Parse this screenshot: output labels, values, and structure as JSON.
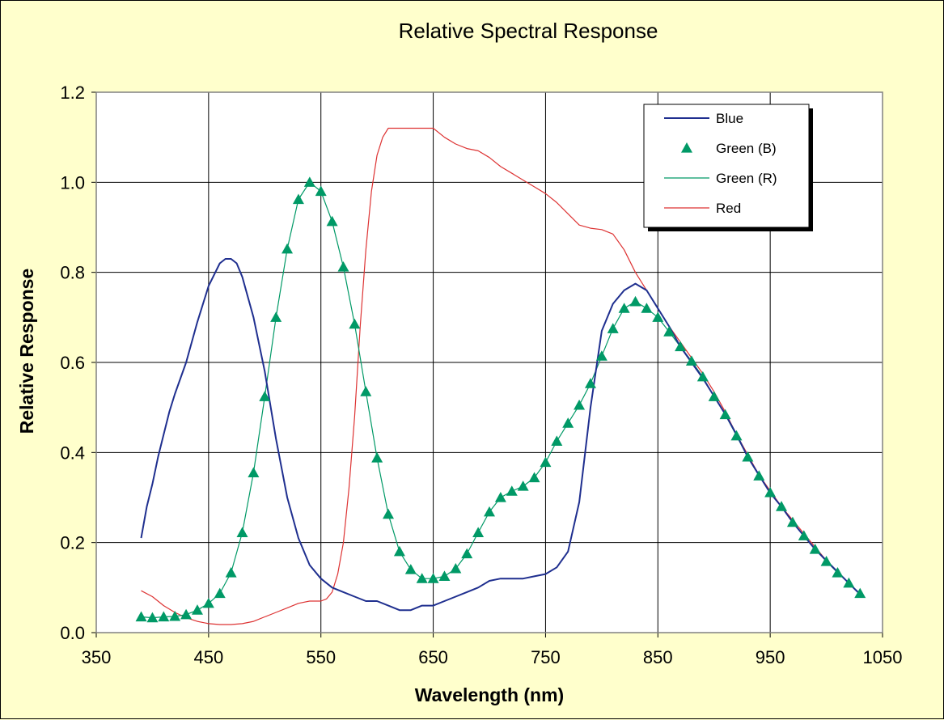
{
  "chart_data": {
    "type": "line",
    "title": "Relative Spectral Response",
    "xlabel": "Wavelength (nm)",
    "ylabel": "Relative Response",
    "xlim": [
      350,
      1050
    ],
    "ylim": [
      0.0,
      1.2
    ],
    "xticks": [
      "350",
      "450",
      "550",
      "650",
      "750",
      "850",
      "950",
      "1050"
    ],
    "yticks": [
      "0.0",
      "0.2",
      "0.4",
      "0.6",
      "0.8",
      "1.0",
      "1.2"
    ],
    "grid": true,
    "legend_position": "top-right",
    "plot_background": "#ffffff",
    "page_background": "#ffffcc",
    "series": [
      {
        "name": "Blue",
        "style": "line",
        "color": "#1f2f8f",
        "x": [
          390,
          395,
          400,
          405,
          410,
          415,
          420,
          430,
          440,
          450,
          460,
          465,
          470,
          475,
          480,
          490,
          500,
          510,
          520,
          530,
          540,
          550,
          560,
          570,
          580,
          590,
          600,
          610,
          620,
          630,
          640,
          650,
          660,
          670,
          680,
          690,
          700,
          710,
          720,
          730,
          740,
          750,
          760,
          770,
          780,
          790,
          800,
          810,
          820,
          830,
          840,
          850,
          860,
          870,
          880,
          890,
          900,
          910,
          920,
          930,
          940,
          950,
          960,
          970,
          980,
          990,
          1000,
          1010,
          1020,
          1030
        ],
        "y": [
          0.21,
          0.28,
          0.33,
          0.39,
          0.44,
          0.49,
          0.53,
          0.6,
          0.69,
          0.77,
          0.82,
          0.83,
          0.83,
          0.82,
          0.79,
          0.7,
          0.58,
          0.43,
          0.3,
          0.21,
          0.15,
          0.12,
          0.1,
          0.09,
          0.08,
          0.07,
          0.07,
          0.06,
          0.05,
          0.05,
          0.06,
          0.06,
          0.07,
          0.08,
          0.09,
          0.1,
          0.115,
          0.12,
          0.12,
          0.12,
          0.125,
          0.13,
          0.145,
          0.18,
          0.29,
          0.5,
          0.67,
          0.73,
          0.76,
          0.775,
          0.76,
          0.72,
          0.68,
          0.635,
          0.6,
          0.565,
          0.525,
          0.485,
          0.44,
          0.39,
          0.35,
          0.31,
          0.28,
          0.245,
          0.215,
          0.185,
          0.16,
          0.135,
          0.11,
          0.085
        ]
      },
      {
        "name": "Green (B)",
        "style": "markers",
        "marker": "triangle",
        "color": "#009966",
        "x": [
          390,
          400,
          410,
          420,
          430,
          440,
          450,
          460,
          470,
          480,
          490,
          500,
          510,
          520,
          530,
          540,
          550,
          560,
          570,
          580,
          590,
          600,
          610,
          620,
          630,
          640,
          650,
          660,
          670,
          680,
          690,
          700,
          710,
          720,
          730,
          740,
          750,
          760,
          770,
          780,
          790,
          800,
          810,
          820,
          830,
          840,
          850,
          860,
          870,
          880,
          890,
          900,
          910,
          920,
          930,
          940,
          950,
          960,
          970,
          980,
          990,
          1000,
          1010,
          1020,
          1030
        ],
        "y": [
          0.035,
          0.033,
          0.035,
          0.036,
          0.04,
          0.05,
          0.065,
          0.087,
          0.133,
          0.222,
          0.355,
          0.524,
          0.7,
          0.852,
          0.962,
          1.0,
          0.98,
          0.913,
          0.812,
          0.685,
          0.535,
          0.388,
          0.263,
          0.18,
          0.14,
          0.12,
          0.12,
          0.125,
          0.142,
          0.175,
          0.222,
          0.268,
          0.3,
          0.314,
          0.325,
          0.344,
          0.378,
          0.425,
          0.465,
          0.505,
          0.553,
          0.614,
          0.675,
          0.72,
          0.735,
          0.72,
          0.7,
          0.668,
          0.635,
          0.603,
          0.568,
          0.524,
          0.484,
          0.437,
          0.39,
          0.348,
          0.311,
          0.28,
          0.245,
          0.215,
          0.185,
          0.158,
          0.133,
          0.11,
          0.087
        ]
      },
      {
        "name": "Green (R)",
        "style": "line",
        "color": "#009966",
        "x": [
          390,
          400,
          410,
          420,
          430,
          440,
          450,
          460,
          470,
          480,
          490,
          500,
          510,
          520,
          530,
          540,
          550,
          560,
          570,
          580,
          590,
          600,
          610,
          620,
          630,
          640,
          650,
          660,
          670,
          680,
          690,
          700,
          710,
          720,
          730,
          740,
          750,
          760,
          770,
          780,
          790,
          800,
          810,
          820,
          830,
          840,
          850,
          860,
          870,
          880,
          890,
          900,
          910,
          920,
          930,
          940,
          950,
          960,
          970,
          980,
          990,
          1000,
          1010,
          1020,
          1030
        ],
        "y": [
          0.035,
          0.033,
          0.035,
          0.036,
          0.04,
          0.05,
          0.065,
          0.087,
          0.133,
          0.222,
          0.355,
          0.524,
          0.7,
          0.852,
          0.962,
          1.0,
          0.98,
          0.913,
          0.812,
          0.685,
          0.535,
          0.388,
          0.263,
          0.18,
          0.14,
          0.12,
          0.12,
          0.125,
          0.142,
          0.175,
          0.222,
          0.268,
          0.3,
          0.314,
          0.325,
          0.344,
          0.378,
          0.425,
          0.465,
          0.505,
          0.553,
          0.614,
          0.675,
          0.72,
          0.735,
          0.72,
          0.7,
          0.668,
          0.635,
          0.603,
          0.568,
          0.524,
          0.484,
          0.437,
          0.39,
          0.348,
          0.311,
          0.28,
          0.245,
          0.215,
          0.185,
          0.158,
          0.133,
          0.11,
          0.087
        ]
      },
      {
        "name": "Red",
        "style": "line",
        "color": "#dd3333",
        "x": [
          390,
          400,
          410,
          420,
          430,
          440,
          450,
          460,
          470,
          480,
          490,
          500,
          510,
          520,
          530,
          540,
          550,
          555,
          560,
          565,
          570,
          575,
          580,
          585,
          590,
          595,
          600,
          605,
          610,
          620,
          630,
          640,
          650,
          660,
          670,
          680,
          690,
          700,
          710,
          720,
          730,
          740,
          750,
          760,
          770,
          780,
          790,
          800,
          810,
          820,
          830,
          840,
          850,
          860,
          870,
          880,
          890,
          900,
          910,
          920,
          930,
          940,
          950,
          960,
          970,
          980,
          990,
          1000,
          1010,
          1020,
          1030
        ],
        "y": [
          0.093,
          0.08,
          0.06,
          0.045,
          0.033,
          0.025,
          0.02,
          0.018,
          0.018,
          0.02,
          0.025,
          0.035,
          0.045,
          0.055,
          0.065,
          0.07,
          0.07,
          0.075,
          0.09,
          0.13,
          0.2,
          0.32,
          0.48,
          0.68,
          0.85,
          0.98,
          1.06,
          1.1,
          1.12,
          1.12,
          1.12,
          1.12,
          1.12,
          1.1,
          1.085,
          1.075,
          1.07,
          1.055,
          1.035,
          1.02,
          1.005,
          0.99,
          0.975,
          0.955,
          0.93,
          0.905,
          0.898,
          0.895,
          0.885,
          0.85,
          0.8,
          0.76,
          0.72,
          0.68,
          0.645,
          0.61,
          0.575,
          0.535,
          0.49,
          0.44,
          0.395,
          0.35,
          0.315,
          0.28,
          0.25,
          0.22,
          0.19,
          0.16,
          0.135,
          0.11,
          0.085
        ]
      }
    ]
  }
}
